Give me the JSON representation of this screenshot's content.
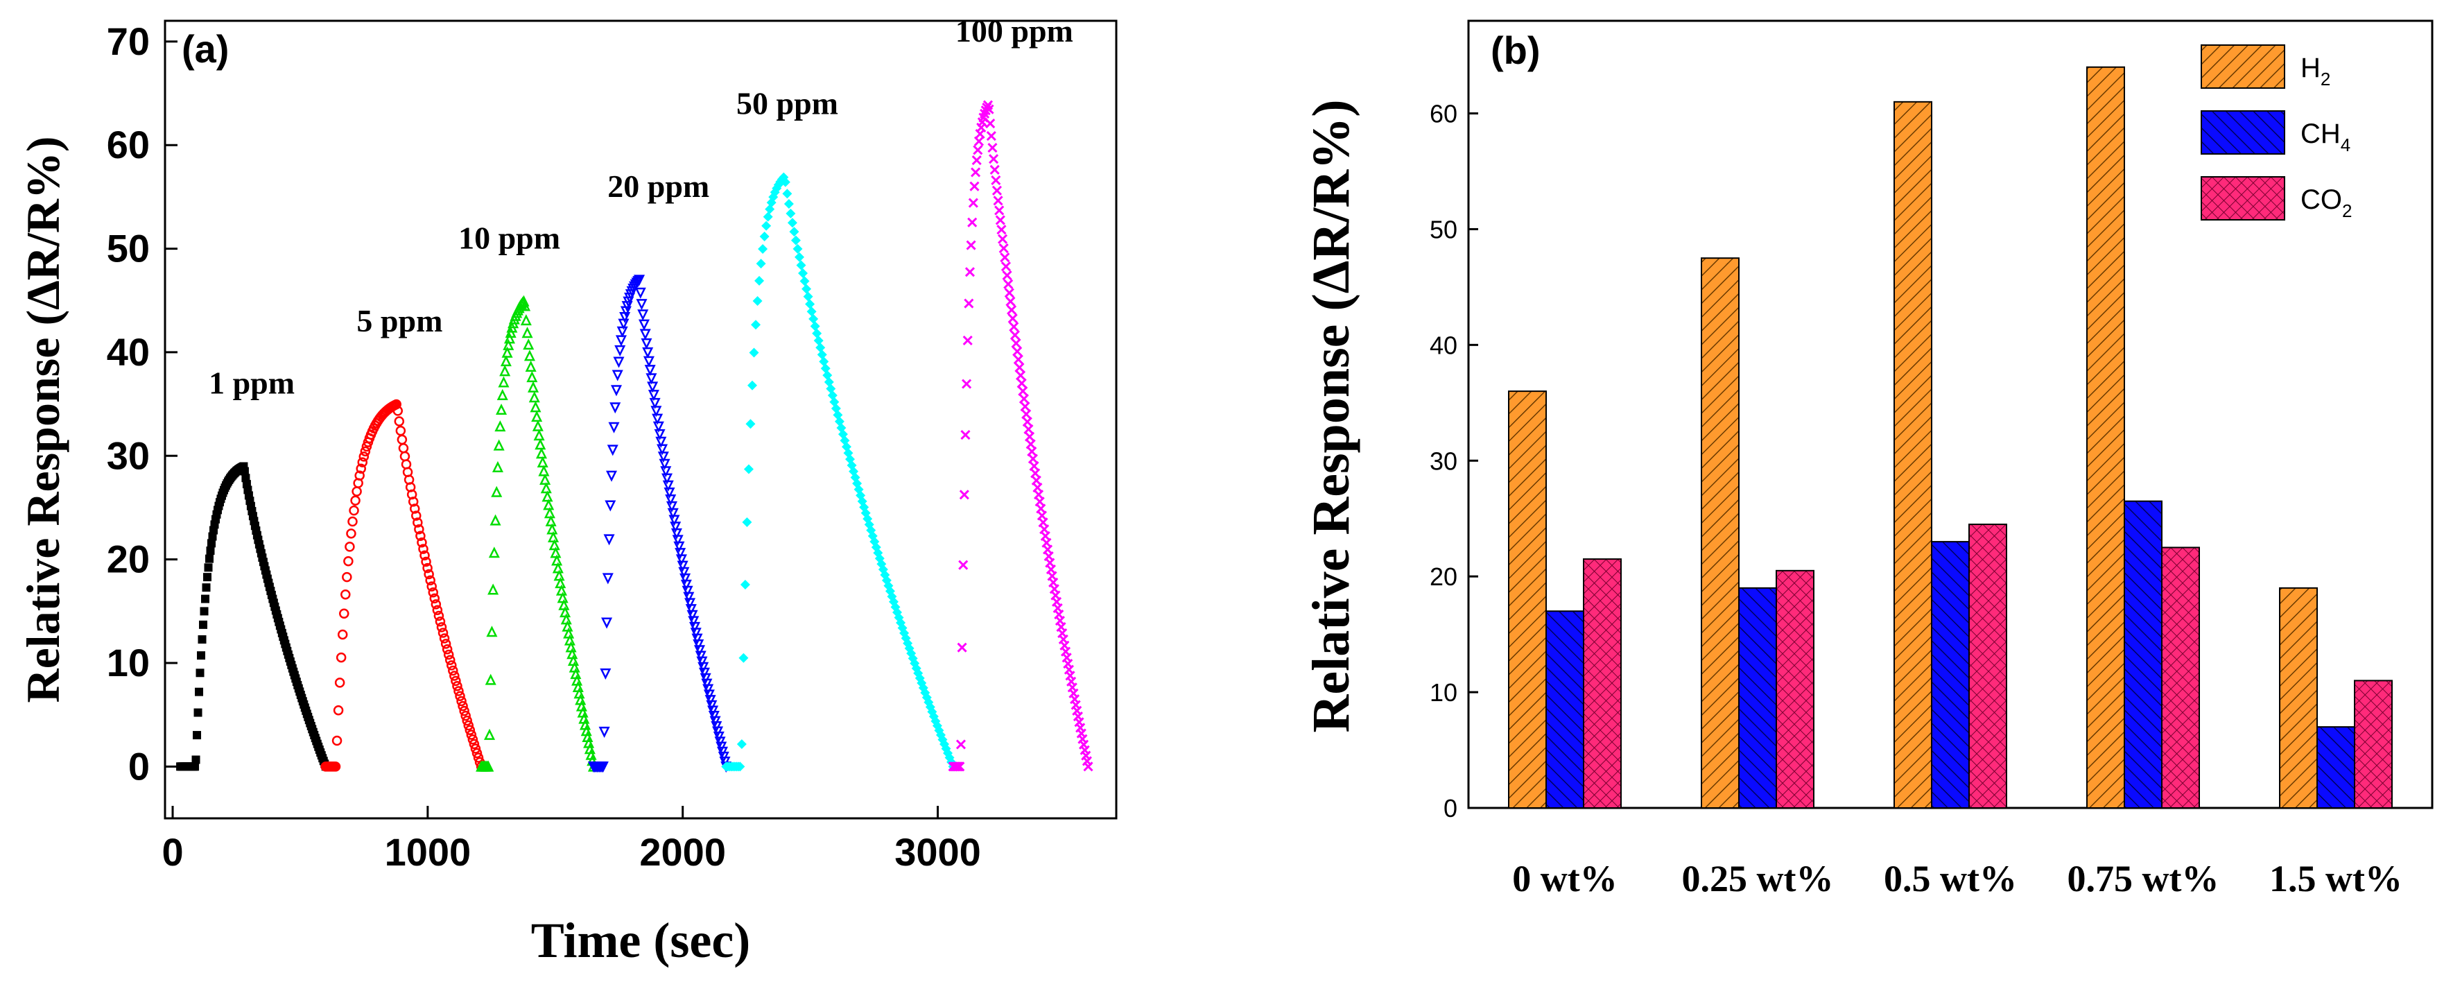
{
  "chart_data": [
    {
      "type": "scatter",
      "panel_label": "(a)",
      "xlabel": "Time (sec)",
      "ylabel": "Relative Response (ΔR/R%)",
      "xlim": [
        -30,
        3700
      ],
      "ylim": [
        -5,
        72
      ],
      "xticks": [
        0,
        1000,
        2000,
        3000
      ],
      "yticks": [
        0,
        10,
        20,
        30,
        40,
        50,
        60,
        70
      ],
      "annotations": [
        {
          "text": "1 ppm",
          "x": 310,
          "y": 36
        },
        {
          "text": "5 ppm",
          "x": 890,
          "y": 42
        },
        {
          "text": "10 ppm",
          "x": 1320,
          "y": 50
        },
        {
          "text": "20 ppm",
          "x": 1905,
          "y": 55
        },
        {
          "text": "50 ppm",
          "x": 2410,
          "y": 63
        },
        {
          "text": "100 ppm",
          "x": 3300,
          "y": 70
        }
      ],
      "series": [
        {
          "name": "1 ppm",
          "color": "#000000",
          "marker": "square",
          "start": 30,
          "rise_start": 90,
          "peak_time": 280,
          "end": 600,
          "peak": 29,
          "n": 140
        },
        {
          "name": "5 ppm",
          "color": "#ff0000",
          "marker": "circle",
          "start": 600,
          "rise_start": 640,
          "peak_time": 880,
          "end": 1210,
          "peak": 35,
          "n": 110
        },
        {
          "name": "10 ppm",
          "color": "#00dd00",
          "marker": "triangle-up",
          "start": 1210,
          "rise_start": 1240,
          "peak_time": 1380,
          "end": 1650,
          "peak": 45,
          "n": 95
        },
        {
          "name": "20 ppm",
          "color": "#0000ff",
          "marker": "triangle-down",
          "start": 1650,
          "rise_start": 1690,
          "peak_time": 1830,
          "end": 2170,
          "peak": 47,
          "n": 110
        },
        {
          "name": "50 ppm",
          "color": "#00ffff",
          "marker": "diamond",
          "start": 2170,
          "rise_start": 2230,
          "peak_time": 2400,
          "end": 3060,
          "peak": 57,
          "n": 130
        },
        {
          "name": "100 ppm",
          "color": "#ff00ff",
          "marker": "x",
          "start": 3060,
          "rise_start": 3090,
          "peak_time": 3200,
          "end": 3590,
          "peak": 64,
          "n": 120
        }
      ]
    },
    {
      "type": "bar",
      "panel_label": "(b)",
      "xlabel": "",
      "ylabel": "Relative Response (ΔR/R%)",
      "ylim": [
        0,
        68
      ],
      "yticks": [
        0,
        10,
        20,
        30,
        40,
        50,
        60
      ],
      "categories": [
        "0 wt%",
        "0.25 wt%",
        "0.5 wt%",
        "0.75 wt%",
        "1.5 wt%"
      ],
      "legend_position": "top-right",
      "series": [
        {
          "name": "H",
          "sub": "2",
          "color": "#ff9a2e",
          "pattern": "diag-right",
          "values": [
            36,
            47.5,
            61,
            64,
            19
          ]
        },
        {
          "name": "CH",
          "sub": "4",
          "color": "#0a0aff",
          "pattern": "diag-left",
          "values": [
            17,
            19,
            23,
            26.5,
            7
          ]
        },
        {
          "name": "CO",
          "sub": "2",
          "color": "#ff2a7a",
          "pattern": "crosshatch",
          "values": [
            21.5,
            20.5,
            24.5,
            22.5,
            11
          ]
        }
      ]
    }
  ]
}
